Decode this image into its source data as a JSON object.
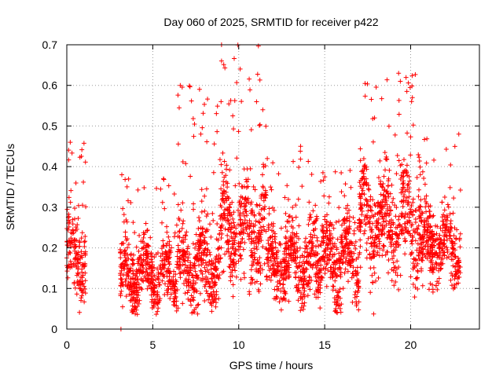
{
  "chart_data": {
    "type": "scatter",
    "title": "Day 060 of 2025, SRMTID for receiver p422",
    "xlabel": "GPS time / hours",
    "ylabel": "SRMTID / TECUs",
    "xlim": [
      0,
      24
    ],
    "ylim": [
      0,
      0.7
    ],
    "xticks": [
      0,
      5,
      10,
      15,
      20
    ],
    "xtick_labels": [
      "0",
      "5",
      "10",
      "15",
      "20"
    ],
    "yticks": [
      0,
      0.1,
      0.2,
      0.3,
      0.4,
      0.5,
      0.6,
      0.7
    ],
    "ytick_labels": [
      "0",
      "0.1",
      "0.2",
      "0.3",
      "0.4",
      "0.5",
      "0.6",
      "0.7"
    ],
    "grid": true,
    "marker": "plus",
    "color": "#ff0000",
    "segments": [
      {
        "x_start": 0.0,
        "x_end": 1.1,
        "center": 0.17,
        "spread": 0.09,
        "spike_max": 0.46
      },
      {
        "x_start": 3.1,
        "x_end": 6.4,
        "center": 0.13,
        "spread": 0.07,
        "spike_max": 0.38
      },
      {
        "x_start": 6.4,
        "x_end": 8.9,
        "center": 0.15,
        "spread": 0.09,
        "spike_max": 0.6
      },
      {
        "x_start": 8.9,
        "x_end": 11.6,
        "center": 0.24,
        "spread": 0.11,
        "spike_max": 0.7
      },
      {
        "x_start": 11.6,
        "x_end": 14.8,
        "center": 0.16,
        "spread": 0.08,
        "spike_max": 0.45
      },
      {
        "x_start": 14.8,
        "x_end": 17.0,
        "center": 0.17,
        "spread": 0.09,
        "spike_max": 0.4
      },
      {
        "x_start": 17.0,
        "x_end": 20.6,
        "center": 0.26,
        "spread": 0.11,
        "spike_max": 0.63
      },
      {
        "x_start": 20.6,
        "x_end": 22.9,
        "center": 0.2,
        "spread": 0.08,
        "spike_max": 0.48
      }
    ],
    "highlight_points": [
      {
        "x": 9.0,
        "y": 0.7
      },
      {
        "x": 9.0,
        "y": 0.66
      },
      {
        "x": 6.6,
        "y": 0.6
      },
      {
        "x": 19.3,
        "y": 0.63
      },
      {
        "x": 19.4,
        "y": 0.61
      },
      {
        "x": 20.1,
        "y": 0.57
      },
      {
        "x": 11.4,
        "y": 0.54
      },
      {
        "x": 17.9,
        "y": 0.52
      },
      {
        "x": 0.2,
        "y": 0.46
      },
      {
        "x": 13.6,
        "y": 0.45
      },
      {
        "x": 22.8,
        "y": 0.48
      },
      {
        "x": 3.2,
        "y": 0.38
      },
      {
        "x": 3.15,
        "y": 0.0
      }
    ]
  }
}
